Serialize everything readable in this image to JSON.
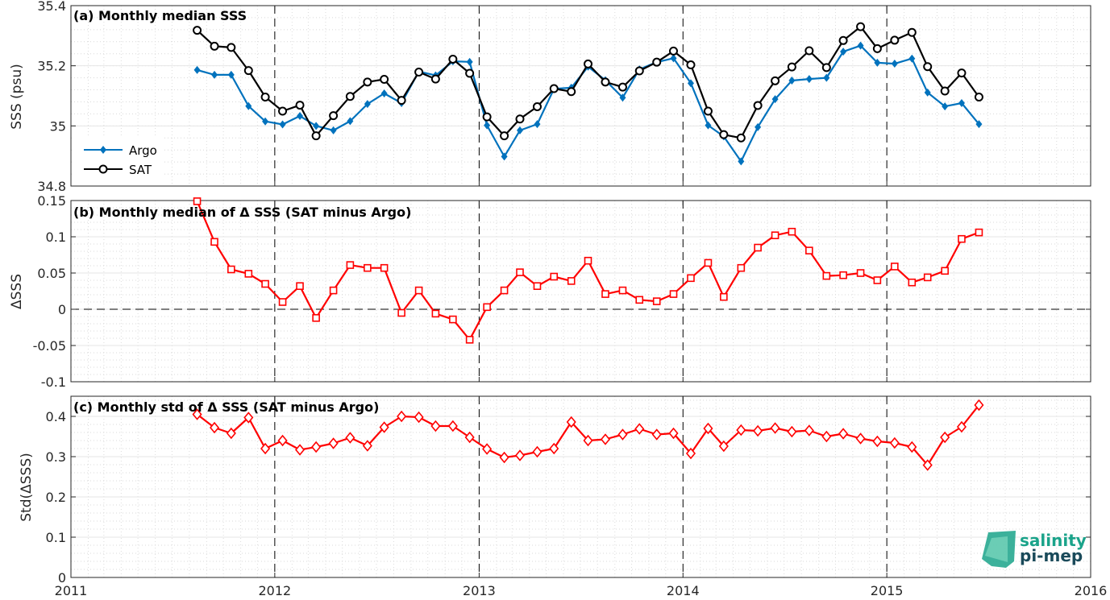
{
  "chart_data": [
    {
      "type": "line",
      "title": "(a) Monthly median SSS",
      "ylabel": "SSS (psu)",
      "ylim": [
        34.8,
        35.4
      ],
      "yticks": [
        34.8,
        35,
        35.2,
        35.4
      ],
      "ytick_labels": [
        "34.8",
        "35",
        "35.2",
        "35.4"
      ],
      "xlim": [
        "2011-01-01",
        "2016-01-01"
      ],
      "grid": true,
      "legend_position": "lower-left",
      "x": [
        "2011-08-15",
        "2011-09-15",
        "2011-10-15",
        "2011-11-15",
        "2011-12-15",
        "2012-01-15",
        "2012-02-15",
        "2012-03-15",
        "2012-04-15",
        "2012-05-15",
        "2012-06-15",
        "2012-07-15",
        "2012-08-15",
        "2012-09-15",
        "2012-10-15",
        "2012-11-15",
        "2012-12-15",
        "2013-01-15",
        "2013-02-15",
        "2013-03-15",
        "2013-04-15",
        "2013-05-15",
        "2013-06-15",
        "2013-07-15",
        "2013-08-15",
        "2013-09-15",
        "2013-10-15",
        "2013-11-15",
        "2013-12-15",
        "2014-01-15",
        "2014-02-15",
        "2014-03-15",
        "2014-04-15",
        "2014-05-15",
        "2014-06-15",
        "2014-07-15",
        "2014-08-15",
        "2014-09-15",
        "2014-10-15",
        "2014-11-15",
        "2014-12-15",
        "2015-01-15",
        "2015-02-15",
        "2015-03-15",
        "2015-04-15",
        "2015-05-15",
        "2015-06-15"
      ],
      "series": [
        {
          "name": "Argo",
          "color": "#0072bd",
          "marker": "diamond",
          "values": [
            35.186,
            35.17,
            35.17,
            35.066,
            35.015,
            35.005,
            35.033,
            35.0,
            34.985,
            35.016,
            35.073,
            35.108,
            35.076,
            35.181,
            35.168,
            35.215,
            35.213,
            35.002,
            34.898,
            34.985,
            35.006,
            35.123,
            35.127,
            35.197,
            35.152,
            35.094,
            35.188,
            35.212,
            35.225,
            35.142,
            35.002,
            34.965,
            34.882,
            34.996,
            35.089,
            35.151,
            35.156,
            35.16,
            35.247,
            35.267,
            35.21,
            35.207,
            35.224,
            35.111,
            35.065,
            35.076,
            35.006
          ]
        },
        {
          "name": "SAT",
          "color": "#000000",
          "marker": "circle",
          "values": [
            35.318,
            35.265,
            35.261,
            35.184,
            35.096,
            35.049,
            35.069,
            34.967,
            35.034,
            35.098,
            35.146,
            35.155,
            35.085,
            35.179,
            35.156,
            35.222,
            35.175,
            35.03,
            34.967,
            35.023,
            35.064,
            35.124,
            35.114,
            35.206,
            35.146,
            35.129,
            35.183,
            35.212,
            35.249,
            35.203,
            35.049,
            34.971,
            34.96,
            35.068,
            35.15,
            35.196,
            35.25,
            35.194,
            35.284,
            35.33,
            35.257,
            35.285,
            35.311,
            35.197,
            35.116,
            35.176,
            35.096
          ]
        }
      ]
    },
    {
      "type": "line",
      "title": "(b) Monthly median of Δ SSS (SAT minus Argo)",
      "ylabel": "ΔSSS",
      "ylim": [
        -0.1,
        0.15
      ],
      "yticks": [
        -0.1,
        -0.05,
        0,
        0.05,
        0.1,
        0.15
      ],
      "ytick_labels": [
        "-0.1",
        "-0.05",
        "0",
        "0.05",
        "0.1",
        "0.15"
      ],
      "xlim": [
        "2011-01-01",
        "2016-01-01"
      ],
      "grid": true,
      "zero_line": true,
      "series": [
        {
          "name": "",
          "color": "#ff0000",
          "marker": "square",
          "values": [
            0.149,
            0.093,
            0.055,
            0.049,
            0.035,
            0.01,
            0.032,
            -0.012,
            0.026,
            0.061,
            0.057,
            0.057,
            -0.005,
            0.026,
            -0.006,
            -0.014,
            -0.042,
            0.003,
            0.026,
            0.051,
            0.032,
            0.045,
            0.039,
            0.067,
            0.021,
            0.026,
            0.013,
            0.011,
            0.021,
            0.043,
            0.064,
            0.017,
            0.057,
            0.085,
            0.102,
            0.107,
            0.081,
            0.046,
            0.047,
            0.05,
            0.04,
            0.059,
            0.037,
            0.044,
            0.053,
            0.097,
            0.106
          ]
        }
      ]
    },
    {
      "type": "line",
      "title": "(c) Monthly std of Δ SSS (SAT minus Argo)",
      "ylabel": "Std(ΔSSS)",
      "ylim": [
        0,
        0.45
      ],
      "yticks": [
        0,
        0.1,
        0.2,
        0.3,
        0.4
      ],
      "ytick_labels": [
        "0",
        "0.1",
        "0.2",
        "0.3",
        "0.4"
      ],
      "xlim": [
        "2011-01-01",
        "2016-01-01"
      ],
      "xticks": [
        "2011-01-01",
        "2012-01-01",
        "2013-01-01",
        "2014-01-01",
        "2015-01-01",
        "2016-01-01"
      ],
      "xtick_labels": [
        "2011",
        "2012",
        "2013",
        "2014",
        "2015",
        "2016"
      ],
      "grid": true,
      "series": [
        {
          "name": "",
          "color": "#ff0000",
          "marker": "diamond-open",
          "values": [
            0.405,
            0.372,
            0.358,
            0.397,
            0.32,
            0.34,
            0.317,
            0.324,
            0.333,
            0.347,
            0.327,
            0.373,
            0.4,
            0.398,
            0.376,
            0.376,
            0.348,
            0.319,
            0.298,
            0.303,
            0.312,
            0.32,
            0.386,
            0.34,
            0.343,
            0.355,
            0.369,
            0.355,
            0.358,
            0.308,
            0.37,
            0.326,
            0.366,
            0.364,
            0.371,
            0.362,
            0.365,
            0.35,
            0.357,
            0.345,
            0.338,
            0.334,
            0.324,
            0.279,
            0.348,
            0.374,
            0.428
          ]
        }
      ]
    }
  ],
  "logo": {
    "line1": "salinity",
    "line2": "pi-mep",
    "color": "#1aa38a"
  }
}
